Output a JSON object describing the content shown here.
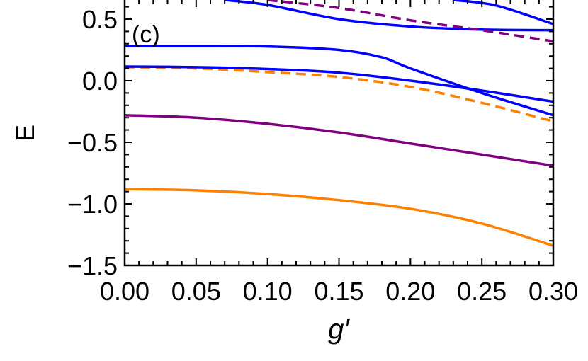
{
  "chart_data": {
    "type": "line",
    "panel_label": "(c)",
    "xlabel": "g′",
    "ylabel": "E",
    "xlim": [
      0,
      0.3
    ],
    "ylim": [
      -1.5,
      0.655
    ],
    "xticks": [
      "0.00",
      "0.05",
      "0.10",
      "0.15",
      "0.20",
      "0.25",
      "0.30"
    ],
    "yticks": [
      "0.5",
      "0.0",
      "−0.5",
      "−1.0",
      "−1.5"
    ],
    "ytick_values": [
      0.5,
      0.0,
      -0.5,
      -1.0,
      -1.5
    ],
    "xtick_values": [
      0,
      0.05,
      0.1,
      0.15,
      0.2,
      0.25,
      0.3
    ],
    "grid": false,
    "series": [
      {
        "color": "#ff8000",
        "style": "solid",
        "x": [
          0,
          0.05,
          0.1,
          0.15,
          0.2,
          0.25,
          0.3
        ],
        "y": [
          -0.88,
          -0.89,
          -0.92,
          -0.97,
          -1.04,
          -1.16,
          -1.34
        ]
      },
      {
        "color": "#800080",
        "style": "solid",
        "x": [
          0,
          0.05,
          0.1,
          0.15,
          0.2,
          0.25,
          0.3
        ],
        "y": [
          -0.28,
          -0.3,
          -0.35,
          -0.42,
          -0.51,
          -0.6,
          -0.69
        ]
      },
      {
        "color": "#ff8000",
        "style": "dashed",
        "x": [
          0,
          0.05,
          0.1,
          0.15,
          0.2,
          0.25,
          0.3
        ],
        "y": [
          0.11,
          0.1,
          0.07,
          0.03,
          -0.05,
          -0.18,
          -0.33
        ]
      },
      {
        "color": "#0000ff",
        "style": "solid",
        "x": [
          0,
          0.05,
          0.1,
          0.15,
          0.2,
          0.25,
          0.3
        ],
        "y": [
          0.115,
          0.11,
          0.095,
          0.065,
          0.0,
          -0.08,
          -0.17
        ]
      },
      {
        "color": "#0000ff",
        "style": "solid",
        "x": [
          0,
          0.05,
          0.1,
          0.15,
          0.18,
          0.2,
          0.25,
          0.3
        ],
        "y": [
          0.28,
          0.28,
          0.278,
          0.25,
          0.19,
          0.1,
          -0.1,
          -0.28
        ]
      },
      {
        "color": "#0000ff",
        "style": "solid",
        "x": [
          0.07,
          0.1,
          0.15,
          0.2,
          0.25,
          0.3
        ],
        "y": [
          0.655,
          0.615,
          0.5,
          0.44,
          0.415,
          0.41
        ]
      },
      {
        "color": "#0000ff",
        "style": "solid",
        "x": [
          0.23,
          0.26,
          0.3
        ],
        "y": [
          0.655,
          0.61,
          0.46
        ]
      },
      {
        "color": "#800080",
        "style": "dashed",
        "x": [
          0.1,
          0.15,
          0.2,
          0.25,
          0.3
        ],
        "y": [
          0.655,
          0.59,
          0.49,
          0.41,
          0.32
        ]
      }
    ]
  }
}
